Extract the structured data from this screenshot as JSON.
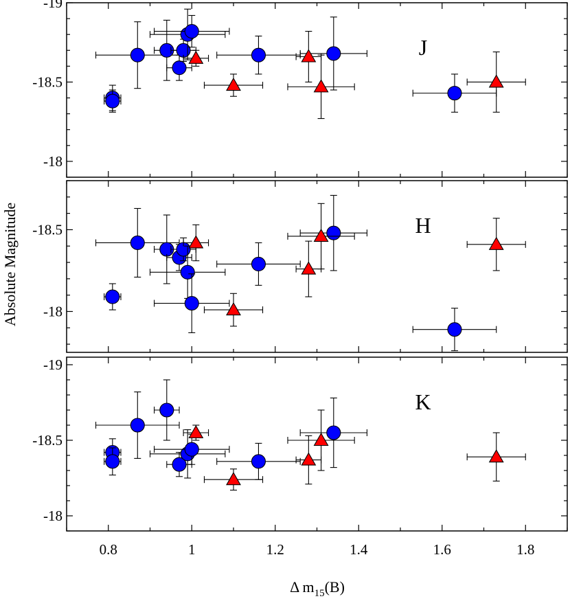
{
  "chart_data": {
    "type": "scatter",
    "xlabel": "Δ m15(B)",
    "xlabel_main": "Δ m",
    "xlabel_sub": "15",
    "xlabel_tail": "(B)",
    "ylabel": "Absolute Magnitude",
    "xlim": [
      0.7,
      1.9
    ],
    "xticks": [
      0.8,
      1.0,
      1.2,
      1.4,
      1.6,
      1.8
    ],
    "xtick_labels": [
      "0.8",
      "1",
      "1.2",
      "1.4",
      "1.6",
      "1.8"
    ],
    "series_styles": [
      {
        "name": "circles",
        "marker": "circle",
        "color": "#0000ff"
      },
      {
        "name": "triangles",
        "marker": "triangle",
        "color": "#ff0000"
      }
    ],
    "panels": [
      {
        "label": "J",
        "ylim": [
          -19.0,
          -17.9
        ],
        "yticks": [
          -19.0,
          -18.5,
          -18.0
        ],
        "ytick_labels": [
          "-19",
          "-18.5",
          "-18"
        ],
        "circles": [
          {
            "x": 0.81,
            "y": -18.4,
            "xerr": 0.02,
            "yerr": 0.08
          },
          {
            "x": 0.81,
            "y": -18.38,
            "xerr": 0.02,
            "yerr": 0.07
          },
          {
            "x": 0.87,
            "y": -18.67,
            "xerr": 0.1,
            "yerr": 0.21
          },
          {
            "x": 0.94,
            "y": -18.7,
            "xerr": 0.03,
            "yerr": 0.19
          },
          {
            "x": 0.97,
            "y": -18.59,
            "xerr": 0.03,
            "yerr": 0.08
          },
          {
            "x": 0.98,
            "y": -18.7,
            "xerr": 0.03,
            "yerr": 0.07
          },
          {
            "x": 0.99,
            "y": -18.8,
            "xerr": 0.09,
            "yerr": 0.16
          },
          {
            "x": 1.0,
            "y": -18.82,
            "xerr": 0.09,
            "yerr": 0.1
          },
          {
            "x": 1.16,
            "y": -18.67,
            "xerr": 0.1,
            "yerr": 0.12
          },
          {
            "x": 1.34,
            "y": -18.68,
            "xerr": 0.08,
            "yerr": 0.23
          },
          {
            "x": 1.63,
            "y": -18.43,
            "xerr": 0.1,
            "yerr": 0.12
          }
        ],
        "triangles": [
          {
            "x": 1.01,
            "y": -18.65,
            "xerr": 0.03,
            "yerr": 0.05
          },
          {
            "x": 1.1,
            "y": -18.48,
            "xerr": 0.07,
            "yerr": 0.07
          },
          {
            "x": 1.28,
            "y": -18.66,
            "xerr": 0.03,
            "yerr": 0.16
          },
          {
            "x": 1.31,
            "y": -18.47,
            "xerr": 0.08,
            "yerr": 0.2
          },
          {
            "x": 1.73,
            "y": -18.5,
            "xerr": 0.07,
            "yerr": 0.19
          }
        ]
      },
      {
        "label": "H",
        "ylim": [
          -18.8,
          -17.75
        ],
        "yticks": [
          -18.5,
          -18.0
        ],
        "ytick_labels": [
          "-18.5",
          "-18"
        ],
        "circles": [
          {
            "x": 0.81,
            "y": -18.09,
            "xerr": 0.02,
            "yerr": 0.08
          },
          {
            "x": 0.87,
            "y": -18.42,
            "xerr": 0.1,
            "yerr": 0.21
          },
          {
            "x": 0.94,
            "y": -18.38,
            "xerr": 0.03,
            "yerr": 0.21
          },
          {
            "x": 0.97,
            "y": -18.33,
            "xerr": 0.03,
            "yerr": 0.08
          },
          {
            "x": 0.98,
            "y": -18.38,
            "xerr": 0.03,
            "yerr": 0.07
          },
          {
            "x": 0.99,
            "y": -18.24,
            "xerr": 0.09,
            "yerr": 0.16
          },
          {
            "x": 1.0,
            "y": -18.05,
            "xerr": 0.09,
            "yerr": 0.18
          },
          {
            "x": 1.16,
            "y": -18.29,
            "xerr": 0.1,
            "yerr": 0.13
          },
          {
            "x": 1.34,
            "y": -18.48,
            "xerr": 0.08,
            "yerr": 0.23
          },
          {
            "x": 1.63,
            "y": -17.89,
            "xerr": 0.1,
            "yerr": 0.13
          }
        ],
        "triangles": [
          {
            "x": 1.01,
            "y": -18.42,
            "xerr": 0.03,
            "yerr": 0.11
          },
          {
            "x": 1.1,
            "y": -18.01,
            "xerr": 0.07,
            "yerr": 0.1
          },
          {
            "x": 1.28,
            "y": -18.26,
            "xerr": 0.03,
            "yerr": 0.17
          },
          {
            "x": 1.31,
            "y": -18.46,
            "xerr": 0.08,
            "yerr": 0.2
          },
          {
            "x": 1.73,
            "y": -18.41,
            "xerr": 0.07,
            "yerr": 0.16
          }
        ]
      },
      {
        "label": "K",
        "ylim": [
          -19.05,
          -17.9
        ],
        "yticks": [
          -19.0,
          -18.5,
          -18.0
        ],
        "ytick_labels": [
          "-19",
          "-18.5",
          "-18"
        ],
        "circles": [
          {
            "x": 0.81,
            "y": -18.42,
            "xerr": 0.02,
            "yerr": 0.09
          },
          {
            "x": 0.81,
            "y": -18.36,
            "xerr": 0.02,
            "yerr": 0.09
          },
          {
            "x": 0.87,
            "y": -18.6,
            "xerr": 0.1,
            "yerr": 0.22
          },
          {
            "x": 0.94,
            "y": -18.7,
            "xerr": 0.03,
            "yerr": 0.2
          },
          {
            "x": 0.97,
            "y": -18.34,
            "xerr": 0.03,
            "yerr": 0.08
          },
          {
            "x": 0.99,
            "y": -18.41,
            "xerr": 0.09,
            "yerr": 0.16
          },
          {
            "x": 1.0,
            "y": -18.44,
            "xerr": 0.09,
            "yerr": 0.1
          },
          {
            "x": 1.16,
            "y": -18.36,
            "xerr": 0.1,
            "yerr": 0.12
          },
          {
            "x": 1.34,
            "y": -18.55,
            "xerr": 0.08,
            "yerr": 0.23
          }
        ],
        "triangles": [
          {
            "x": 1.01,
            "y": -18.55,
            "xerr": 0.03,
            "yerr": 0.05
          },
          {
            "x": 1.1,
            "y": -18.24,
            "xerr": 0.07,
            "yerr": 0.07
          },
          {
            "x": 1.28,
            "y": -18.37,
            "xerr": 0.03,
            "yerr": 0.16
          },
          {
            "x": 1.31,
            "y": -18.5,
            "xerr": 0.08,
            "yerr": 0.2
          },
          {
            "x": 1.73,
            "y": -18.39,
            "xerr": 0.07,
            "yerr": 0.16
          }
        ]
      }
    ]
  }
}
